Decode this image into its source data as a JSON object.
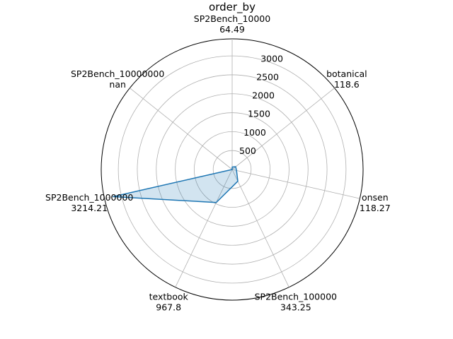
{
  "chart_data": {
    "type": "radar",
    "title": "order_by",
    "categories": [
      {
        "name": "SP2Bench_10000",
        "value_label": "64.49"
      },
      {
        "name": "botanical",
        "value_label": "118.6"
      },
      {
        "name": "onsen",
        "value_label": "118.27"
      },
      {
        "name": "SP2Bench_100000",
        "value_label": "343.25"
      },
      {
        "name": "textbook",
        "value_label": "967.8"
      },
      {
        "name": "SP2Bench_1000000",
        "value_label": "3214.21"
      },
      {
        "name": "SP2Bench_10000000",
        "value_label": "nan"
      }
    ],
    "values": [
      64.49,
      118.6,
      118.27,
      343.25,
      967.8,
      3214.21,
      null
    ],
    "r_ticks": [
      "500",
      "1000",
      "1500",
      "2000",
      "2500",
      "3000"
    ],
    "r_tick_values": [
      500,
      1000,
      1500,
      2000,
      2500,
      3000
    ],
    "r_max": 3450,
    "grid": true,
    "colors": {
      "line": "#1f77b4",
      "fill": "#1f77b4",
      "grid": "#b0b0b0",
      "frame": "#000000"
    }
  }
}
